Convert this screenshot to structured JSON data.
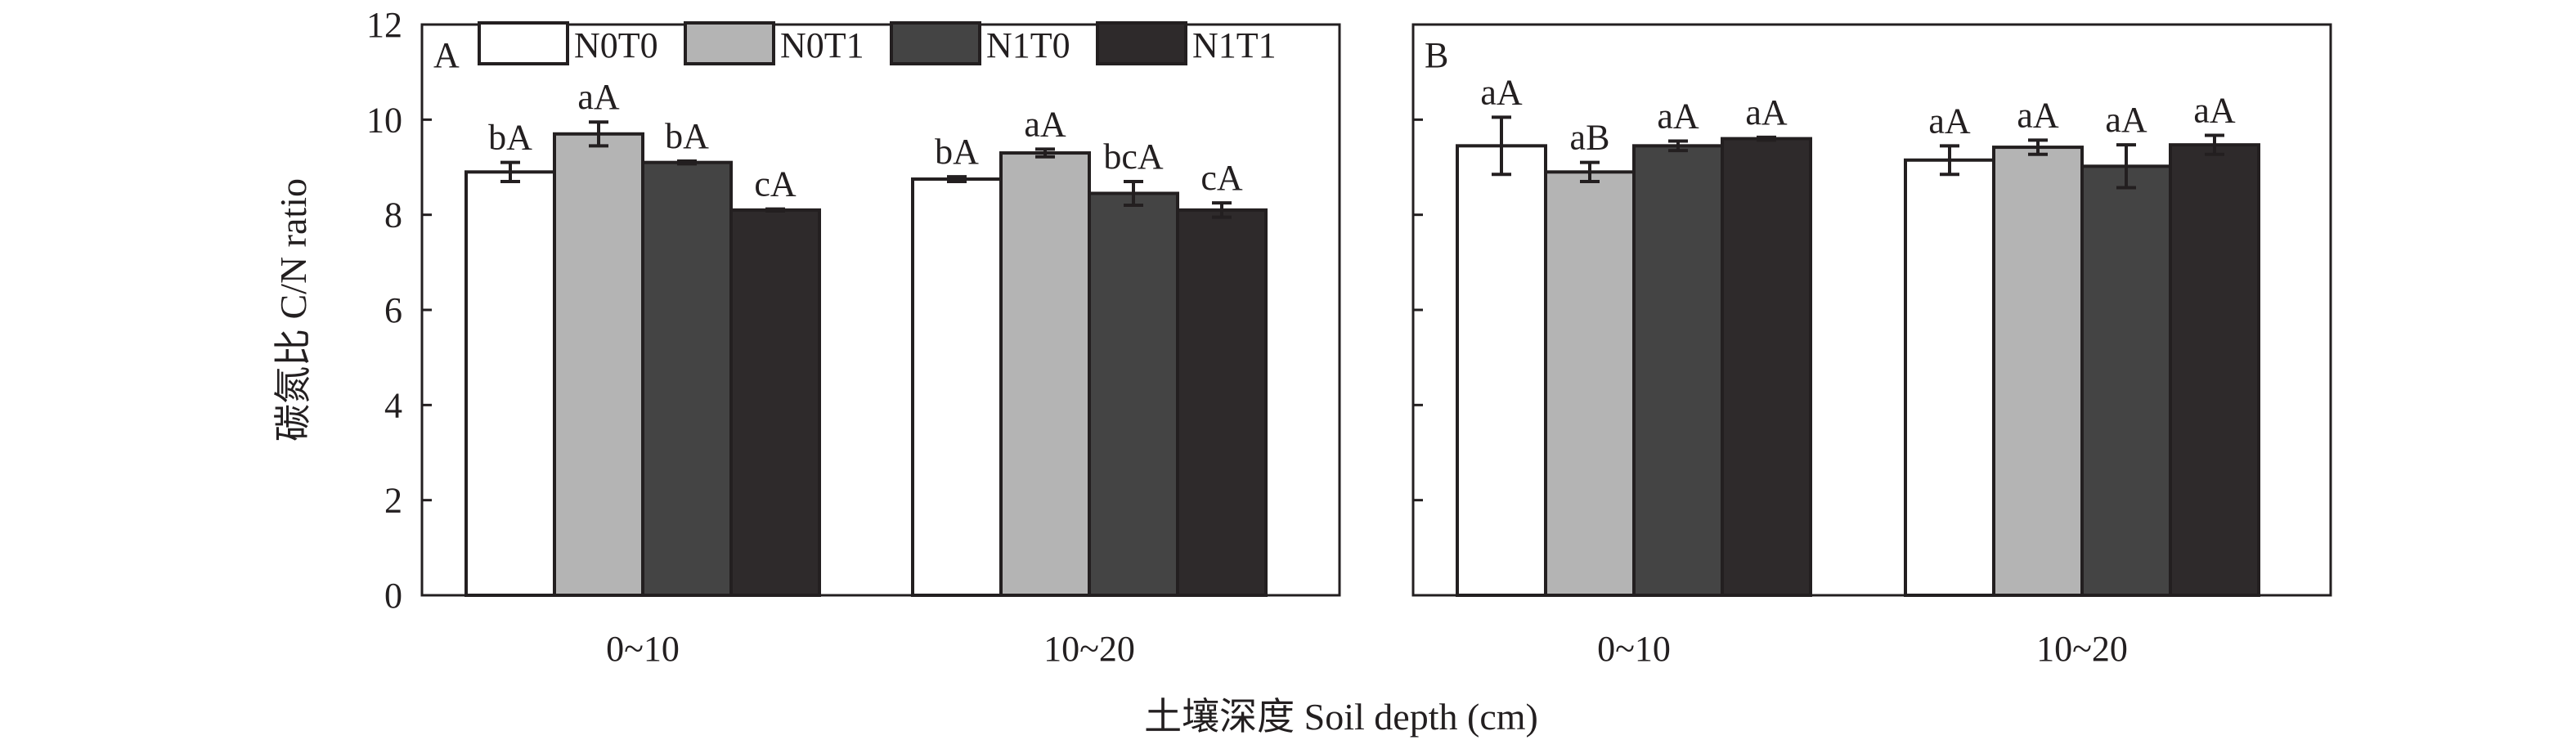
{
  "colors": {
    "N0T0": "#ffffff",
    "N0T1": "#b4b4b4",
    "N1T0": "#444444",
    "N1T1": "#2e2a2b",
    "stroke": "#231f20"
  },
  "chart_data": {
    "type": "bar",
    "ylabel": "碳氮比 C/N ratio",
    "xlabel": "土壤深度 Soil depth (cm)",
    "ylim": [
      0,
      12
    ],
    "yticks": [
      0,
      2,
      4,
      6,
      8,
      10,
      12
    ],
    "legend": {
      "placement": "top",
      "entries": [
        "N0T0",
        "N0T1",
        "N1T0",
        "N1T1"
      ]
    },
    "panels": [
      {
        "label": "A",
        "categories": [
          "0~10",
          "10~20"
        ],
        "series": [
          {
            "name": "N0T0",
            "values": [
              8.9,
              8.75
            ],
            "errors": [
              0.2,
              0.05
            ],
            "labels": [
              "bA",
              "bA"
            ]
          },
          {
            "name": "N0T1",
            "values": [
              9.7,
              9.3
            ],
            "errors": [
              0.25,
              0.08
            ],
            "labels": [
              "aA",
              "aA"
            ]
          },
          {
            "name": "N1T0",
            "values": [
              9.1,
              8.45
            ],
            "errors": [
              0.03,
              0.25
            ],
            "labels": [
              "bA",
              "bcA"
            ]
          },
          {
            "name": "N1T1",
            "values": [
              8.1,
              8.1
            ],
            "errors": [
              0.02,
              0.15
            ],
            "labels": [
              "cA",
              "cA"
            ]
          }
        ]
      },
      {
        "label": "B",
        "categories": [
          "0~10",
          "10~20"
        ],
        "series": [
          {
            "name": "N0T0",
            "values": [
              9.45,
              9.15
            ],
            "errors": [
              0.6,
              0.3
            ],
            "labels": [
              "aA",
              "aA"
            ]
          },
          {
            "name": "N0T1",
            "values": [
              8.9,
              9.42
            ],
            "errors": [
              0.2,
              0.15
            ],
            "labels": [
              "aB",
              "aA"
            ]
          },
          {
            "name": "N1T0",
            "values": [
              9.45,
              9.02
            ],
            "errors": [
              0.1,
              0.45
            ],
            "labels": [
              "aA",
              "aA"
            ]
          },
          {
            "name": "N1T1",
            "values": [
              9.6,
              9.47
            ],
            "errors": [
              0.03,
              0.2
            ],
            "labels": [
              "aA",
              "aA"
            ]
          }
        ]
      }
    ]
  }
}
